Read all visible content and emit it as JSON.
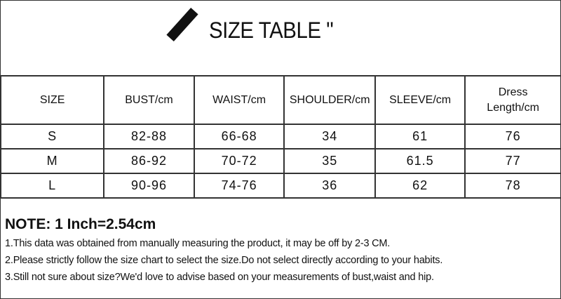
{
  "title": "SIZE TABLE \"",
  "table": {
    "headers": [
      "SIZE",
      "BUST/cm",
      "WAIST/cm",
      "SHOULDER/cm",
      "SLEEVE/cm",
      "Dress Length/cm"
    ],
    "rows": [
      [
        "S",
        "82-88",
        "66-68",
        "34",
        "61",
        "76"
      ],
      [
        "M",
        "86-92",
        "70-72",
        "35",
        "61.5",
        "77"
      ],
      [
        "L",
        "90-96",
        "74-76",
        "36",
        "62",
        "78"
      ]
    ]
  },
  "note": {
    "heading": "NOTE: 1 Inch=2.54cm",
    "lines": [
      "1.This data was obtained from manually measuring the product, it may be off by 2-3 CM.",
      "2.Please strictly follow the size chart to select the size.Do not select directly according to your habits.",
      "3.Still not sure about size?We'd love to advise based on your measurements of bust,waist and hip."
    ]
  }
}
